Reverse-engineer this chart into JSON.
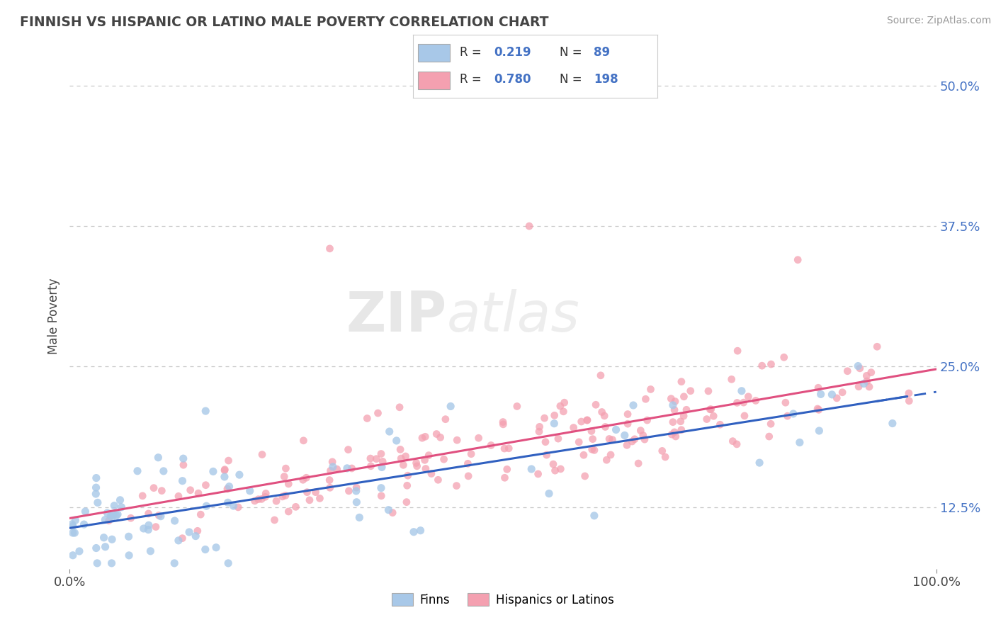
{
  "title": "FINNISH VS HISPANIC OR LATINO MALE POVERTY CORRELATION CHART",
  "source": "Source: ZipAtlas.com",
  "ylabel": "Male Poverty",
  "xlim": [
    0.0,
    1.0
  ],
  "ylim": [
    0.07,
    0.52
  ],
  "yticks": [
    0.125,
    0.25,
    0.375,
    0.5
  ],
  "ytick_labels": [
    "12.5%",
    "25.0%",
    "37.5%",
    "50.0%"
  ],
  "xtick_labels": [
    "0.0%",
    "100.0%"
  ],
  "legend_R1": "0.219",
  "legend_N1": "89",
  "legend_R2": "0.780",
  "legend_N2": "198",
  "color_finns": "#A8C8E8",
  "color_hispanics": "#F4A0B0",
  "trendline_finns": "#3060C0",
  "trendline_hispanics": "#E05080",
  "watermark_zip": "ZIP",
  "watermark_atlas": "atlas",
  "background_color": "#FFFFFF",
  "grid_color": "#C8C8C8",
  "title_color": "#444444",
  "axis_color": "#444444"
}
